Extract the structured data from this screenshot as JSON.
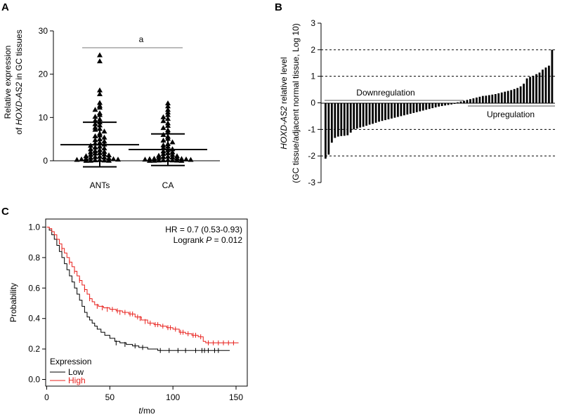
{
  "chart_data": [
    {
      "panel": "A",
      "type": "scatter",
      "ylabel_lines": [
        "Relative expression",
        "of HOXD-AS2 in GC tissues"
      ],
      "ylabel_italic": "HOXD-AS2",
      "ylim": [
        0,
        30
      ],
      "yticks": [
        0,
        10,
        20,
        30
      ],
      "categories": [
        "ANTs",
        "CA"
      ],
      "significance_label": "a",
      "series": [
        {
          "name": "ANTs",
          "mean": 3.7,
          "sd_lower": -1.4,
          "sd_upper": 8.9,
          "values": [
            24.4,
            23.0,
            16.3,
            15.4,
            13.4,
            12.7,
            12.3,
            11.8,
            11.0,
            10.6,
            10.2,
            9.6,
            9.3,
            8.9,
            8.5,
            8.2,
            7.7,
            7.4,
            7.2,
            6.8,
            6.3,
            5.9,
            5.7,
            5.4,
            5.0,
            4.8,
            4.5,
            4.2,
            4.0,
            3.8,
            3.5,
            3.3,
            3.1,
            2.9,
            2.7,
            2.5,
            2.3,
            2.1,
            2.0,
            1.8,
            1.7,
            1.5,
            1.4,
            1.3,
            1.1,
            1.0,
            0.9,
            0.8,
            0.7,
            0.6,
            0.5,
            0.4,
            0.35,
            0.3,
            0.25,
            0.2,
            0.15,
            0.1,
            0.05,
            0.05,
            0.02
          ]
        },
        {
          "name": "CA",
          "mean": 2.6,
          "sd_lower": -1.1,
          "sd_upper": 6.2,
          "values": [
            13.3,
            12.6,
            11.8,
            11.2,
            10.6,
            10.1,
            9.7,
            9.2,
            8.7,
            8.1,
            7.6,
            7.1,
            6.6,
            6.0,
            5.6,
            5.1,
            4.7,
            4.3,
            3.9,
            3.6,
            3.3,
            3.0,
            2.7,
            2.5,
            2.2,
            2.0,
            1.8,
            1.6,
            1.4,
            1.2,
            1.1,
            1.0,
            0.9,
            0.8,
            0.7,
            0.6,
            0.5,
            0.45,
            0.4,
            0.35,
            0.3,
            0.25,
            0.2,
            0.15,
            0.12,
            0.1,
            0.08,
            0.05,
            0.03,
            0.02
          ]
        }
      ]
    },
    {
      "panel": "B",
      "type": "bar",
      "ylabel_lines": [
        "HOXD-AS2 relative level",
        "(GC tissue/adjacent normal tissue, Log 10)"
      ],
      "ylabel_italic": "HOXD-AS2",
      "ylim": [
        -3,
        3
      ],
      "yticks": [
        3,
        2,
        1,
        0,
        -1,
        -2,
        -3
      ],
      "reference_lines": [
        2,
        1,
        -1,
        -2
      ],
      "annotations": [
        "Downregulation",
        "Upregulation"
      ],
      "values": [
        -2.1,
        -1.95,
        -1.5,
        -1.32,
        -1.27,
        -1.25,
        -1.24,
        -1.22,
        -1.12,
        -1.0,
        -0.97,
        -0.93,
        -0.9,
        -0.86,
        -0.82,
        -0.79,
        -0.75,
        -0.71,
        -0.68,
        -0.65,
        -0.62,
        -0.59,
        -0.56,
        -0.53,
        -0.5,
        -0.47,
        -0.44,
        -0.41,
        -0.38,
        -0.35,
        -0.32,
        -0.29,
        -0.26,
        -0.23,
        -0.2,
        -0.17,
        -0.14,
        -0.12,
        -0.1,
        -0.08,
        -0.06,
        -0.04,
        0.02,
        0.05,
        0.08,
        0.11,
        0.14,
        0.17,
        0.2,
        0.23,
        0.26,
        0.27,
        0.29,
        0.31,
        0.33,
        0.36,
        0.39,
        0.42,
        0.45,
        0.48,
        0.52,
        0.56,
        0.62,
        0.72,
        0.92,
        0.98,
        1.02,
        1.08,
        1.14,
        1.25,
        1.33,
        1.4,
        2.0
      ]
    },
    {
      "panel": "C",
      "type": "line",
      "subtype": "kaplan-meier",
      "xlabel_italic": "t",
      "xlabel_rest": "/mo",
      "ylabel": "Probability",
      "xlim": [
        0,
        155
      ],
      "ylim": [
        0,
        1.0
      ],
      "xticks": [
        0,
        50,
        100,
        150
      ],
      "yticks": [
        0.0,
        0.2,
        0.4,
        0.6,
        0.8,
        1.0
      ],
      "ytick_labels": [
        "0.0",
        "0.2",
        "0.4",
        "0.6",
        "0.8",
        "1.0"
      ],
      "hr_text": "HR = 0.7 (0.53-0.93)",
      "logrank_prefix": "Logrank ",
      "logrank_p": "P",
      "logrank_suffix": " = 0.012",
      "legend_title": "Expression",
      "series": [
        {
          "name": "Low",
          "color": "#000000",
          "steps": [
            [
              0,
              1.0
            ],
            [
              2,
              0.98
            ],
            [
              4,
              0.95
            ],
            [
              6,
              0.92
            ],
            [
              8,
              0.88
            ],
            [
              10,
              0.84
            ],
            [
              12,
              0.8
            ],
            [
              14,
              0.76
            ],
            [
              16,
              0.72
            ],
            [
              18,
              0.68
            ],
            [
              20,
              0.64
            ],
            [
              22,
              0.6
            ],
            [
              24,
              0.56
            ],
            [
              26,
              0.52
            ],
            [
              28,
              0.48
            ],
            [
              30,
              0.44
            ],
            [
              32,
              0.41
            ],
            [
              34,
              0.39
            ],
            [
              36,
              0.37
            ],
            [
              38,
              0.35
            ],
            [
              40,
              0.33
            ],
            [
              43,
              0.31
            ],
            [
              46,
              0.29
            ],
            [
              50,
              0.27
            ],
            [
              54,
              0.25
            ],
            [
              58,
              0.24
            ],
            [
              63,
              0.23
            ],
            [
              68,
              0.22
            ],
            [
              73,
              0.21
            ],
            [
              80,
              0.2
            ],
            [
              88,
              0.19
            ],
            [
              145,
              0.19
            ]
          ],
          "censors": [
            [
              55,
              0.24
            ],
            [
              62,
              0.23
            ],
            [
              70,
              0.22
            ],
            [
              76,
              0.21
            ],
            [
              90,
              0.19
            ],
            [
              97,
              0.19
            ],
            [
              104,
              0.19
            ],
            [
              110,
              0.19
            ],
            [
              118,
              0.19
            ],
            [
              123,
              0.19
            ],
            [
              125,
              0.19
            ],
            [
              128,
              0.19
            ],
            [
              133,
              0.19
            ],
            [
              136,
              0.19
            ]
          ]
        },
        {
          "name": "High",
          "color": "#e8201c",
          "steps": [
            [
              0,
              1.0
            ],
            [
              2,
              0.99
            ],
            [
              4,
              0.97
            ],
            [
              6,
              0.95
            ],
            [
              8,
              0.92
            ],
            [
              10,
              0.89
            ],
            [
              12,
              0.86
            ],
            [
              14,
              0.83
            ],
            [
              16,
              0.8
            ],
            [
              18,
              0.77
            ],
            [
              20,
              0.74
            ],
            [
              22,
              0.71
            ],
            [
              24,
              0.68
            ],
            [
              26,
              0.65
            ],
            [
              28,
              0.62
            ],
            [
              30,
              0.59
            ],
            [
              32,
              0.56
            ],
            [
              34,
              0.53
            ],
            [
              36,
              0.51
            ],
            [
              38,
              0.49
            ],
            [
              41,
              0.48
            ],
            [
              45,
              0.47
            ],
            [
              50,
              0.46
            ],
            [
              55,
              0.45
            ],
            [
              60,
              0.44
            ],
            [
              65,
              0.43
            ],
            [
              70,
              0.41
            ],
            [
              75,
              0.39
            ],
            [
              80,
              0.37
            ],
            [
              85,
              0.36
            ],
            [
              90,
              0.35
            ],
            [
              95,
              0.34
            ],
            [
              100,
              0.33
            ],
            [
              105,
              0.31
            ],
            [
              110,
              0.3
            ],
            [
              115,
              0.29
            ],
            [
              120,
              0.28
            ],
            [
              124,
              0.25
            ],
            [
              126,
              0.24
            ],
            [
              152,
              0.24
            ]
          ],
          "censors": [
            [
              12,
              0.86
            ],
            [
              18,
              0.77
            ],
            [
              22,
              0.71
            ],
            [
              26,
              0.65
            ],
            [
              30,
              0.59
            ],
            [
              34,
              0.53
            ],
            [
              40,
              0.48
            ],
            [
              44,
              0.47
            ],
            [
              48,
              0.46
            ],
            [
              52,
              0.46
            ],
            [
              56,
              0.45
            ],
            [
              58,
              0.44
            ],
            [
              62,
              0.44
            ],
            [
              66,
              0.43
            ],
            [
              68,
              0.43
            ],
            [
              72,
              0.41
            ],
            [
              74,
              0.4
            ],
            [
              78,
              0.38
            ],
            [
              82,
              0.37
            ],
            [
              86,
              0.36
            ],
            [
              88,
              0.36
            ],
            [
              92,
              0.35
            ],
            [
              96,
              0.34
            ],
            [
              98,
              0.34
            ],
            [
              102,
              0.33
            ],
            [
              106,
              0.31
            ],
            [
              108,
              0.31
            ],
            [
              112,
              0.3
            ],
            [
              116,
              0.29
            ],
            [
              118,
              0.29
            ],
            [
              122,
              0.28
            ],
            [
              128,
              0.24
            ],
            [
              132,
              0.24
            ],
            [
              136,
              0.24
            ],
            [
              140,
              0.24
            ],
            [
              144,
              0.24
            ],
            [
              148,
              0.24
            ]
          ]
        }
      ]
    }
  ],
  "panel_letters": [
    "A",
    "B",
    "C"
  ]
}
